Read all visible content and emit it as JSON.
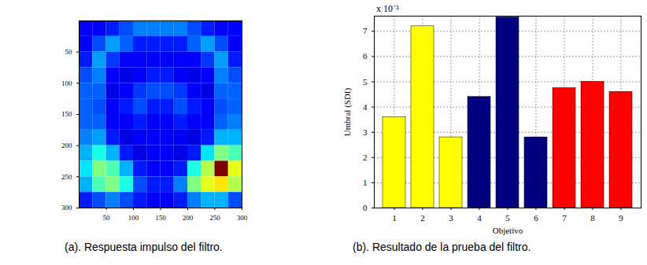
{
  "chart_data": [
    {
      "type": "heatmap",
      "caption": "(a). Respuesta impulso del filtro.",
      "xlim": [
        0,
        300
      ],
      "ylim": [
        0,
        300
      ],
      "xticks": [
        50,
        100,
        150,
        200,
        250,
        300
      ],
      "yticks": [
        50,
        100,
        150,
        200,
        250,
        300
      ],
      "color_range": [
        0,
        1
      ],
      "cells": [
        [
          0.12,
          0.12,
          0.15,
          0.2,
          0.25,
          0.25,
          0.25,
          0.25,
          0.2,
          0.15,
          0.12,
          0.12
        ],
        [
          0.12,
          0.2,
          0.28,
          0.22,
          0.15,
          0.15,
          0.15,
          0.15,
          0.22,
          0.28,
          0.2,
          0.12
        ],
        [
          0.15,
          0.28,
          0.18,
          0.12,
          0.12,
          0.12,
          0.12,
          0.12,
          0.12,
          0.18,
          0.28,
          0.15
        ],
        [
          0.2,
          0.25,
          0.12,
          0.1,
          0.12,
          0.15,
          0.15,
          0.12,
          0.1,
          0.12,
          0.25,
          0.2
        ],
        [
          0.22,
          0.22,
          0.1,
          0.12,
          0.18,
          0.2,
          0.2,
          0.18,
          0.12,
          0.1,
          0.22,
          0.22
        ],
        [
          0.22,
          0.2,
          0.12,
          0.15,
          0.2,
          0.15,
          0.15,
          0.2,
          0.15,
          0.12,
          0.2,
          0.22
        ],
        [
          0.22,
          0.22,
          0.12,
          0.12,
          0.15,
          0.12,
          0.12,
          0.15,
          0.12,
          0.12,
          0.22,
          0.25
        ],
        [
          0.25,
          0.28,
          0.15,
          0.1,
          0.12,
          0.12,
          0.12,
          0.12,
          0.1,
          0.15,
          0.3,
          0.3
        ],
        [
          0.3,
          0.4,
          0.3,
          0.15,
          0.1,
          0.12,
          0.12,
          0.1,
          0.15,
          0.35,
          0.5,
          0.45
        ],
        [
          0.35,
          0.5,
          0.45,
          0.3,
          0.15,
          0.12,
          0.12,
          0.15,
          0.4,
          0.55,
          1.0,
          0.6
        ],
        [
          0.3,
          0.45,
          0.5,
          0.4,
          0.2,
          0.15,
          0.15,
          0.25,
          0.5,
          0.6,
          0.65,
          0.55
        ],
        [
          0.15,
          0.2,
          0.25,
          0.2,
          0.15,
          0.12,
          0.12,
          0.15,
          0.25,
          0.3,
          0.3,
          0.2
        ]
      ]
    },
    {
      "type": "bar",
      "caption": "(b). Resultado de la prueba del filtro.",
      "x_label": "Objetivo",
      "y_label": "Umbral (SDI)",
      "annotations": [
        "x 10⁻³"
      ],
      "categories": [
        "1",
        "2",
        "3",
        "4",
        "5",
        "6",
        "7",
        "8",
        "9"
      ],
      "values": [
        3.6,
        7.2,
        2.8,
        4.4,
        7.55,
        2.8,
        4.75,
        5.0,
        4.6
      ],
      "colors": [
        "#ffff00",
        "#ffff00",
        "#ffff00",
        "#00007f",
        "#00007f",
        "#00007f",
        "#ff0000",
        "#ff0000",
        "#ff0000"
      ],
      "ylim": [
        0,
        7.6
      ],
      "yticks": [
        0,
        1,
        2,
        3,
        4,
        5,
        6,
        7
      ],
      "grid": true
    }
  ]
}
